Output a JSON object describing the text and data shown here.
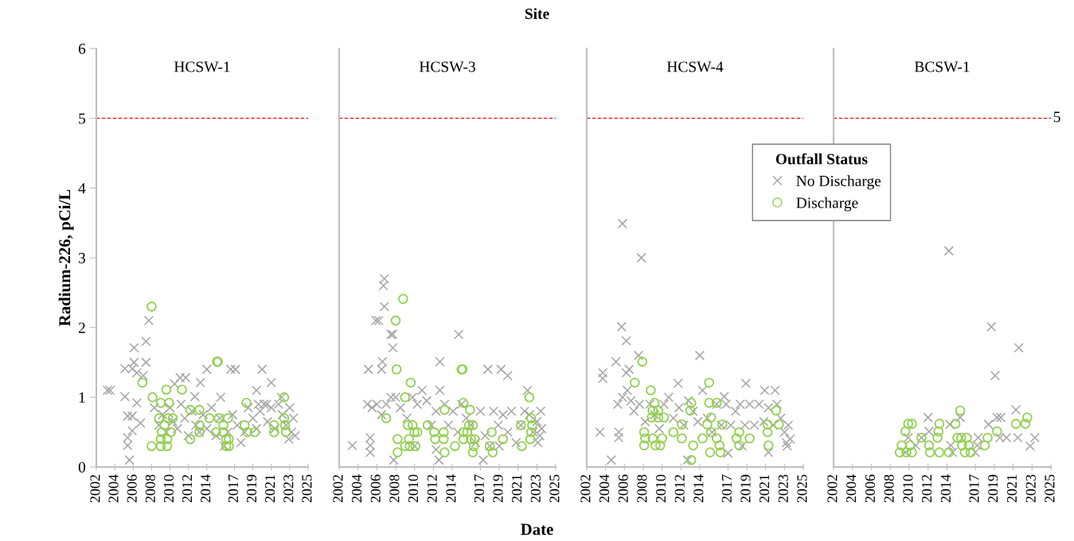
{
  "chart_data": [
    {
      "type": "scatter",
      "title": "HCSW-1",
      "ylabel": "Radium-226, pCi/L",
      "xlim": [
        2002,
        2025
      ],
      "xticks": [
        2002,
        2004,
        2006,
        2008,
        2010,
        2012,
        2014,
        2017,
        2019,
        2021,
        2023,
        2025
      ],
      "ylim": [
        0,
        6
      ],
      "yticks": [
        0,
        1,
        2,
        3,
        4,
        5,
        6
      ],
      "grid": false,
      "legend": false,
      "ref_lines": [
        {
          "axis": "y",
          "value": 5,
          "color": "#ff0000",
          "line_style": "dashed"
        }
      ],
      "series": [
        {
          "color": "#a6a6a6",
          "marker": "cross",
          "x": [
            2003.2,
            2003.5,
            2006.1,
            2007.7,
            2007.4,
            2006.1,
            2007.4,
            2005.1,
            2005.9,
            2006.4,
            2007.1,
            2005.1,
            2006.4,
            2005.4,
            2005.9,
            2006.8,
            2005.9,
            2005.4,
            2005.4,
            2005.6,
            2011.1,
            2011.7,
            2010.5,
            2014.0,
            2013.3,
            2012.7,
            2015.5,
            2016.6,
            2017.1,
            2020.0,
            2019.4,
            2021.0,
            2022.1,
            2008.3,
            2008.8,
            2009.2,
            2009.6,
            2010.0,
            2010.3,
            2010.8,
            2011.2,
            2011.6,
            2012.0,
            2012.4,
            2012.8,
            2013.2,
            2013.6,
            2014.0,
            2014.5,
            2015.0,
            2015.4,
            2015.9,
            2016.3,
            2016.8,
            2017.3,
            2017.7,
            2018.1,
            2018.5,
            2019.0,
            2019.4,
            2019.8,
            2020.2,
            2020.6,
            2021.0,
            2021.4,
            2021.8,
            2022.2,
            2022.6,
            2023.0,
            2023.2,
            2023.4,
            2023.6,
            2022.9,
            2020.5,
            2019.6
          ],
          "values": [
            1.1,
            1.1,
            1.71,
            2.1,
            1.8,
            1.5,
            1.5,
            1.41,
            1.41,
            1.35,
            1.31,
            1.01,
            0.92,
            0.73,
            0.73,
            0.63,
            0.52,
            0.42,
            0.31,
            0.1,
            1.28,
            1.28,
            1.19,
            1.4,
            1.21,
            1.01,
            1.0,
            1.4,
            1.4,
            1.4,
            1.1,
            1.21,
            1.0,
            0.85,
            0.6,
            0.75,
            0.5,
            0.85,
            0.65,
            0.55,
            0.9,
            0.7,
            0.45,
            0.8,
            0.6,
            0.5,
            0.75,
            0.55,
            0.85,
            0.45,
            0.7,
            0.3,
            0.5,
            0.75,
            0.6,
            0.35,
            0.5,
            0.85,
            0.7,
            0.55,
            0.8,
            0.9,
            0.65,
            0.85,
            0.55,
            0.9,
            0.75,
            0.6,
            0.85,
            0.5,
            0.7,
            0.45,
            0.4,
            0.9,
            0.9
          ]
        },
        {
          "color": "#92d050",
          "marker": "circle",
          "x": [
            2008.0,
            2007.0,
            2015.1,
            2015.2,
            2009.6,
            2011.3,
            2008.1,
            2009.0,
            2009.9,
            2012.2,
            2013.2,
            2018.3,
            2022.4,
            2008.8,
            2009.8,
            2010.3,
            2014.3,
            2015.3,
            2016.3,
            2009.4,
            2013.2,
            2015.8,
            2018.1,
            2021.3,
            2022.4,
            2022.5,
            2009.1,
            2010.1,
            2013.2,
            2015.0,
            2015.8,
            2018.4,
            2019.2,
            2021.3,
            2022.6,
            2009.0,
            2009.7,
            2012.2,
            2016.1,
            2016.4,
            2008.0,
            2009.0,
            2009.7,
            2016.1,
            2016.4
          ],
          "values": [
            2.3,
            1.21,
            1.51,
            1.51,
            1.11,
            1.11,
            1.0,
            0.92,
            0.92,
            0.82,
            0.82,
            0.92,
            1.0,
            0.7,
            0.7,
            0.7,
            0.7,
            0.7,
            0.7,
            0.6,
            0.6,
            0.6,
            0.6,
            0.6,
            0.7,
            0.6,
            0.5,
            0.5,
            0.5,
            0.5,
            0.5,
            0.5,
            0.5,
            0.5,
            0.5,
            0.4,
            0.4,
            0.4,
            0.4,
            0.4,
            0.3,
            0.3,
            0.3,
            0.3,
            0.3
          ]
        }
      ]
    },
    {
      "type": "scatter",
      "title": "HCSW-3",
      "tick_labels": "x",
      "xlabel": "Date",
      "annotations": [
        "Site"
      ],
      "xlim": [
        2002,
        2025
      ],
      "xticks": [
        2002,
        2004,
        2006,
        2008,
        2010,
        2012,
        2014,
        2017,
        2019,
        2021,
        2023,
        2025
      ],
      "ylim": [
        0,
        6
      ],
      "yticks": [
        0,
        1,
        2,
        3,
        4,
        5,
        6
      ],
      "grid": false,
      "legend": false,
      "ref_lines": [
        {
          "axis": "y",
          "value": 5,
          "color": "#ff0000",
          "line_style": "dashed"
        }
      ],
      "series": [
        {
          "color": "#a6a6a6",
          "marker": "cross",
          "x": [
            2003.4,
            2006.8,
            2006.7,
            2006.8,
            2005.9,
            2006.2,
            2007.7,
            2007.7,
            2007.5,
            2006.6,
            2005.1,
            2006.5,
            2014.7,
            2012.7,
            2017.8,
            2019.2,
            2019.9,
            2022.0,
            2005.3,
            2005.3,
            2005.3,
            2007.8,
            2012.6,
            2017.3,
            2005.0,
            2005.5,
            2006.0,
            2006.5,
            2007.0,
            2007.5,
            2008.0,
            2008.5,
            2009.2,
            2009.8,
            2010.3,
            2010.8,
            2011.3,
            2011.8,
            2012.3,
            2012.7,
            2013.2,
            2013.6,
            2014.1,
            2014.6,
            2015.0,
            2015.5,
            2016.0,
            2016.5,
            2017.0,
            2017.5,
            2018.0,
            2018.4,
            2018.9,
            2019.4,
            2019.9,
            2020.3,
            2020.8,
            2021.3,
            2021.7,
            2022.2,
            2022.6,
            2023.0,
            2023.3,
            2023.5,
            2023.1,
            2023.4,
            2012.3,
            2010.0,
            2019.0
          ],
          "values": [
            0.31,
            2.7,
            2.6,
            2.3,
            2.1,
            2.1,
            1.9,
            1.71,
            1.9,
            1.51,
            1.4,
            1.4,
            1.9,
            1.51,
            1.4,
            1.4,
            1.31,
            1.1,
            0.42,
            0.31,
            0.21,
            0.1,
            0.1,
            0.1,
            0.9,
            0.85,
            0.9,
            0.75,
            0.9,
            1.0,
            1.0,
            0.85,
            0.7,
            1.0,
            0.9,
            1.1,
            0.95,
            0.6,
            0.8,
            1.1,
            0.9,
            0.6,
            0.8,
            0.5,
            0.9,
            0.7,
            0.6,
            0.35,
            0.8,
            0.45,
            0.3,
            0.8,
            0.6,
            0.75,
            0.5,
            0.8,
            0.35,
            0.6,
            0.8,
            0.75,
            0.5,
            0.65,
            0.45,
            0.55,
            0.35,
            0.8,
            0.25,
            0.3,
            0.3
          ]
        },
        {
          "color": "#92d050",
          "marker": "circle",
          "x": [
            2008.8,
            2008.0,
            2008.1,
            2009.6,
            2015.0,
            2015.1,
            2009.0,
            2007.0,
            2015.2,
            2015.9,
            2013.2,
            2022.2,
            2022.4,
            2009.3,
            2009.8,
            2011.4,
            2015.8,
            2016.2,
            2021.3,
            2022.5,
            2010.0,
            2010.3,
            2012.1,
            2013.1,
            2015.2,
            2015.6,
            2018.2,
            2022.4,
            2008.2,
            2009.4,
            2012.2,
            2013.1,
            2015.2,
            2016.0,
            2016.4,
            2019.4,
            2022.3,
            2009.0,
            2009.5,
            2010.1,
            2014.3,
            2016.3,
            2018.0,
            2021.4,
            2008.2,
            2013.2,
            2016.2,
            2018.3
          ],
          "values": [
            2.41,
            2.1,
            1.4,
            1.21,
            1.4,
            1.4,
            1.0,
            0.7,
            0.92,
            0.82,
            0.82,
            1.0,
            0.7,
            0.6,
            0.6,
            0.6,
            0.6,
            0.6,
            0.6,
            0.6,
            0.5,
            0.5,
            0.5,
            0.5,
            0.5,
            0.5,
            0.5,
            0.5,
            0.4,
            0.4,
            0.4,
            0.4,
            0.4,
            0.4,
            0.4,
            0.4,
            0.4,
            0.3,
            0.3,
            0.3,
            0.3,
            0.3,
            0.3,
            0.3,
            0.21,
            0.21,
            0.21,
            0.21
          ]
        }
      ]
    },
    {
      "type": "scatter",
      "title": "HCSW-4",
      "tick_labels": "x",
      "legend": "right",
      "legend_title": "Outfall Status",
      "xlim": [
        2002,
        2025
      ],
      "xticks": [
        2002,
        2004,
        2006,
        2008,
        2010,
        2012,
        2014,
        2017,
        2019,
        2021,
        2023,
        2025
      ],
      "ylim": [
        0,
        6
      ],
      "yticks": [
        0,
        1,
        2,
        3,
        4,
        5,
        6
      ],
      "grid": false,
      "ref_lines": [
        {
          "axis": "y",
          "value": 5,
          "color": "#ff0000",
          "line_style": "dashed"
        }
      ],
      "series": [
        {
          "name": "No Discharge",
          "color": "#a6a6a6",
          "marker": "cross",
          "x": [
            2005.8,
            2007.8,
            2005.7,
            2006.2,
            2007.5,
            2005.1,
            2003.7,
            2003.7,
            2014.0,
            2018.9,
            2020.9,
            2022.0,
            2003.4,
            2004.6,
            2012.7,
            2021.3,
            2005.4,
            2005.4,
            2006.2,
            2006.5,
            2011.7,
            2016.6,
            2005.3,
            2005.8,
            2006.3,
            2006.7,
            2007.0,
            2007.6,
            2008.2,
            2008.7,
            2009.2,
            2009.7,
            2010.2,
            2010.7,
            2011.2,
            2011.8,
            2012.3,
            2012.8,
            2013.3,
            2013.8,
            2014.3,
            2014.8,
            2015.3,
            2015.8,
            2016.3,
            2016.8,
            2017.3,
            2017.8,
            2018.3,
            2018.8,
            2019.3,
            2019.8,
            2020.3,
            2020.8,
            2021.3,
            2021.8,
            2022.2,
            2022.6,
            2023.0,
            2023.2,
            2023.4,
            2023.6,
            2023.3,
            2017.0,
            2018.5
          ],
          "values": [
            3.49,
            3.0,
            2.01,
            1.81,
            1.6,
            1.51,
            1.35,
            1.27,
            1.6,
            1.2,
            1.1,
            1.1,
            0.5,
            0.1,
            0.1,
            0.21,
            0.5,
            0.42,
            1.35,
            1.4,
            1.2,
            1.01,
            0.9,
            1.0,
            1.1,
            0.95,
            0.8,
            0.9,
            0.65,
            0.9,
            0.75,
            0.55,
            0.9,
            1.0,
            0.7,
            0.85,
            0.6,
            0.95,
            0.8,
            0.65,
            1.1,
            0.7,
            0.5,
            0.9,
            0.6,
            0.9,
            0.6,
            0.8,
            0.9,
            0.6,
            0.9,
            0.6,
            0.9,
            0.65,
            0.85,
            0.6,
            0.9,
            0.7,
            0.5,
            0.35,
            0.6,
            0.4,
            0.3,
            0.2,
            0.3
          ]
        },
        {
          "name": "Discharge",
          "color": "#92d050",
          "marker": "circle",
          "x": [
            2007.9,
            2007.1,
            2008.8,
            2015.0,
            2009.2,
            2013.1,
            2015.0,
            2015.8,
            2009.0,
            2009.6,
            2013.0,
            2022.1,
            2008.9,
            2009.6,
            2010.2,
            2015.2,
            2012.1,
            2014.8,
            2016.4,
            2021.2,
            2022.4,
            2008.1,
            2011.2,
            2015.2,
            2018.2,
            2021.2,
            2008.2,
            2009.0,
            2010.0,
            2012.1,
            2014.3,
            2015.8,
            2017.9,
            2019.3,
            2008.1,
            2009.3,
            2009.8,
            2013.3,
            2016.1,
            2018.2,
            2021.3,
            2015.1,
            2016.2,
            2013.1
          ],
          "values": [
            1.51,
            1.21,
            1.1,
            1.21,
            0.92,
            0.92,
            0.92,
            0.92,
            0.81,
            0.81,
            0.81,
            0.81,
            0.71,
            0.71,
            0.71,
            0.71,
            0.61,
            0.61,
            0.61,
            0.61,
            0.61,
            0.5,
            0.5,
            0.5,
            0.5,
            0.5,
            0.41,
            0.41,
            0.41,
            0.41,
            0.41,
            0.41,
            0.41,
            0.41,
            0.31,
            0.31,
            0.31,
            0.31,
            0.31,
            0.31,
            0.31,
            0.21,
            0.21,
            0.1
          ]
        }
      ]
    },
    {
      "type": "scatter",
      "title": "BCSW-1",
      "tick_labels": "x",
      "legend": false,
      "xlim": [
        2002,
        2025
      ],
      "xticks": [
        2002,
        2004,
        2006,
        2008,
        2010,
        2012,
        2014,
        2017,
        2019,
        2021,
        2023,
        2025
      ],
      "ylim": [
        0,
        6
      ],
      "yticks": [
        0,
        1,
        2,
        3,
        4,
        5,
        6
      ],
      "grid": false,
      "ref_lines": [
        {
          "axis": "y",
          "value": 5,
          "color": "#ff0000",
          "line_style": "dashed",
          "label": "5"
        }
      ],
      "series": [
        {
          "color": "#a6a6a6",
          "marker": "cross",
          "x": [
            2014.2,
            2018.7,
            2021.6,
            2019.1,
            2021.3,
            2012.0,
            2015.4,
            2014.3,
            2019.3,
            2019.7,
            2018.4,
            2012.1,
            2011.3,
            2017.3,
            2019.6,
            2020.3,
            2021.5,
            2023.3,
            2014.4,
            2010.7,
            2017.2,
            2009.6,
            2014.6,
            2017.0,
            2022.8,
            2009.9
          ],
          "values": [
            3.1,
            2.01,
            1.71,
            1.31,
            0.82,
            0.71,
            0.71,
            0.61,
            0.71,
            0.71,
            0.61,
            0.51,
            0.42,
            0.42,
            0.42,
            0.42,
            0.42,
            0.42,
            0.31,
            0.31,
            0.31,
            0.21,
            0.21,
            0.21,
            0.3,
            0.42
          ]
        },
        {
          "color": "#92d050",
          "marker": "circle",
          "x": [
            2015.4,
            2009.9,
            2010.3,
            2013.2,
            2014.9,
            2021.3,
            2022.3,
            2022.5,
            2009.6,
            2013.1,
            2019.3,
            2011.3,
            2013.0,
            2015.1,
            2015.5,
            2016.1,
            2018.3,
            2009.2,
            2010.1,
            2012.1,
            2015.6,
            2016.3,
            2018.0,
            2009.0,
            2009.7,
            2010.3,
            2012.2,
            2013.2,
            2014.2,
            2015.9,
            2016.5
          ],
          "values": [
            0.81,
            0.62,
            0.62,
            0.62,
            0.62,
            0.62,
            0.62,
            0.71,
            0.51,
            0.51,
            0.51,
            0.42,
            0.42,
            0.42,
            0.42,
            0.42,
            0.42,
            0.31,
            0.31,
            0.31,
            0.31,
            0.31,
            0.31,
            0.21,
            0.21,
            0.21,
            0.21,
            0.21,
            0.21,
            0.21,
            0.21
          ]
        }
      ]
    }
  ]
}
